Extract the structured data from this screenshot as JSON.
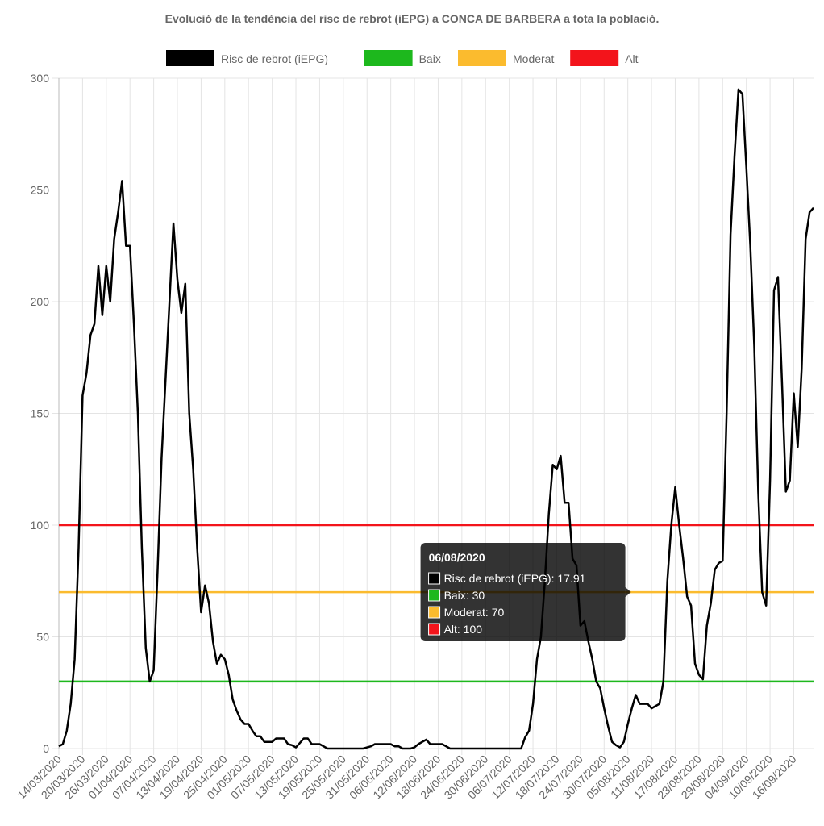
{
  "chart_data": {
    "type": "line",
    "title": "Evolució de la tendència del risc de rebrot (iEPG) a CONCA DE BARBERA a tota la població.",
    "categories": [
      "14/03/2020",
      null,
      null,
      null,
      null,
      null,
      "20/03/2020",
      null,
      null,
      null,
      null,
      null,
      "26/03/2020",
      null,
      null,
      null,
      null,
      null,
      "01/04/2020",
      null,
      null,
      null,
      null,
      null,
      "07/04/2020",
      null,
      null,
      null,
      null,
      null,
      "13/04/2020",
      null,
      null,
      null,
      null,
      null,
      "19/04/2020",
      null,
      null,
      null,
      null,
      null,
      "25/04/2020",
      null,
      null,
      null,
      null,
      null,
      "01/05/2020",
      null,
      null,
      null,
      null,
      null,
      "07/05/2020",
      null,
      null,
      null,
      null,
      null,
      "13/05/2020",
      null,
      null,
      null,
      null,
      null,
      "19/05/2020",
      null,
      null,
      null,
      null,
      null,
      "25/05/2020",
      null,
      null,
      null,
      null,
      null,
      "31/05/2020",
      null,
      null,
      null,
      null,
      null,
      "06/06/2020",
      null,
      null,
      null,
      null,
      null,
      "12/06/2020",
      null,
      null,
      null,
      null,
      null,
      "18/06/2020",
      null,
      null,
      null,
      null,
      null,
      "24/06/2020",
      null,
      null,
      null,
      null,
      null,
      "30/06/2020",
      null,
      null,
      null,
      null,
      null,
      "06/07/2020",
      null,
      null,
      null,
      null,
      null,
      "12/07/2020",
      null,
      null,
      null,
      null,
      null,
      "18/07/2020",
      null,
      null,
      null,
      null,
      null,
      "24/07/2020",
      null,
      null,
      null,
      null,
      null,
      "30/07/2020",
      null,
      null,
      null,
      null,
      null,
      "05/08/2020",
      null,
      null,
      null,
      null,
      null,
      "11/08/2020",
      null,
      null,
      null,
      null,
      null,
      "17/08/2020",
      null,
      null,
      null,
      null,
      null,
      "23/08/2020",
      null,
      null,
      null,
      null,
      null,
      "29/08/2020",
      null,
      null,
      null,
      null,
      null,
      "04/09/2020",
      null,
      null,
      null,
      null,
      null,
      "10/09/2020",
      null,
      null,
      null,
      null,
      null,
      "16/09/2020",
      null,
      null,
      null,
      null,
      null
    ],
    "series": [
      {
        "name": "Risc de rebrot (iEPG)",
        "color": "#000000",
        "values": [
          1,
          2,
          8,
          20,
          40,
          90,
          158,
          168,
          185,
          190,
          216,
          194,
          216,
          200,
          228,
          240,
          254,
          225,
          225,
          190,
          150,
          90,
          45,
          30,
          35,
          80,
          130,
          165,
          200,
          235,
          210,
          195,
          208,
          150,
          125,
          90,
          61,
          73,
          65,
          48,
          38,
          42,
          40,
          33,
          22,
          17,
          13,
          11,
          11,
          8,
          5.5,
          5.5,
          3,
          3,
          3,
          4.5,
          4.5,
          4.5,
          2,
          1.5,
          0.5,
          2.5,
          4.5,
          4.5,
          2,
          2,
          2,
          1,
          0,
          0,
          0,
          0,
          0,
          0,
          0,
          0,
          0,
          0,
          0.5,
          1,
          2,
          2,
          2,
          2,
          2,
          1,
          1,
          0,
          0,
          0,
          0.5,
          2,
          3,
          4,
          2,
          2,
          2,
          2,
          1,
          0,
          0,
          0,
          0,
          0,
          0,
          0,
          0,
          0,
          0,
          0,
          0,
          0,
          0,
          0,
          0,
          0,
          0,
          0,
          5,
          8,
          20,
          40,
          50,
          75,
          105,
          127,
          125,
          131,
          110,
          110,
          85,
          82,
          55,
          57,
          48,
          40,
          30,
          27,
          18,
          10,
          3,
          1.5,
          0.5,
          3,
          11,
          17.91,
          24,
          20,
          20,
          20,
          18,
          19,
          20,
          30,
          75,
          100,
          117,
          100,
          85,
          68,
          64,
          38,
          33,
          31,
          55,
          65,
          80,
          83,
          84,
          150,
          230,
          265,
          295,
          293,
          260,
          225,
          180,
          115,
          70,
          64,
          120,
          205,
          211,
          165,
          115,
          120,
          159,
          135,
          170,
          228,
          240,
          242
        ]
      }
    ],
    "thresholds": [
      {
        "name": "Baix",
        "color": "#1db81d",
        "value": 30
      },
      {
        "name": "Moderat",
        "color": "#fbbb2e",
        "value": 70
      },
      {
        "name": "Alt",
        "color": "#f3141b",
        "value": 100
      }
    ],
    "ylim": [
      0,
      300
    ],
    "yticks": [
      0,
      50,
      100,
      150,
      200,
      250,
      300
    ],
    "grid": true,
    "tooltip": {
      "title": "06/08/2020",
      "items": [
        "Risc de rebrot (iEPG): 17.91",
        "Baix: 30",
        "Moderat: 70",
        "Alt: 100"
      ]
    }
  }
}
